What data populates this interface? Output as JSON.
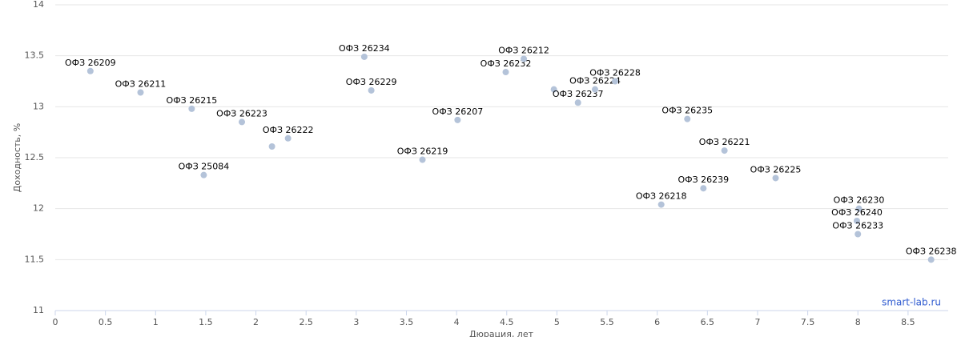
{
  "chart_data": {
    "type": "scatter",
    "x_label": "Дюрация, лет",
    "y_label": "Доходность, %",
    "credit": "smart-lab.ru",
    "x": [
      0.35,
      0.85,
      1.36,
      1.48,
      1.86,
      2.16,
      2.32,
      3.08,
      3.15,
      3.66,
      4.01,
      4.49,
      4.67,
      4.97,
      5.21,
      5.38,
      5.58,
      6.3,
      6.67,
      6.04,
      6.46,
      7.18,
      8.01,
      7.99,
      8.0,
      8.73
    ],
    "values": [
      13.35,
      13.14,
      12.98,
      12.33,
      12.85,
      12.61,
      12.69,
      13.49,
      13.16,
      12.48,
      12.87,
      13.34,
      13.47,
      13.17,
      13.04,
      13.17,
      13.25,
      12.88,
      12.57,
      12.04,
      12.2,
      12.3,
      12.0,
      11.88,
      11.75,
      11.5
    ],
    "point_labels": [
      "ОФЗ 26209",
      "ОФЗ 26211",
      "ОФЗ 26215",
      "ОФЗ 25084",
      "ОФЗ 26223",
      null,
      "ОФЗ 26222",
      "ОФЗ 26234",
      "ОФЗ 26229",
      "ОФЗ 26219",
      "ОФЗ 26207",
      "ОФЗ 26232",
      "ОФЗ 26212",
      null,
      "ОФЗ 26237",
      "ОФЗ 26224",
      "ОФЗ 26228",
      "ОФЗ 26235",
      "ОФЗ 26221",
      "ОФЗ 26218",
      "ОФЗ 26239",
      "ОФЗ 26225",
      "ОФЗ 26230",
      "ОФЗ 26240",
      "ОФЗ 26233",
      "ОФЗ 26238"
    ],
    "color": "#b4c3d9",
    "xlim": [
      0,
      8.9
    ],
    "ylim": [
      11,
      14
    ],
    "xticks": [
      0,
      0.5,
      1,
      1.5,
      2,
      2.5,
      3,
      3.5,
      4,
      4.5,
      5,
      5.5,
      6,
      6.5,
      7,
      7.5,
      8,
      8.5
    ],
    "yticks": [
      11,
      11.5,
      12,
      12.5,
      13,
      13.5,
      14
    ],
    "grid": true
  }
}
